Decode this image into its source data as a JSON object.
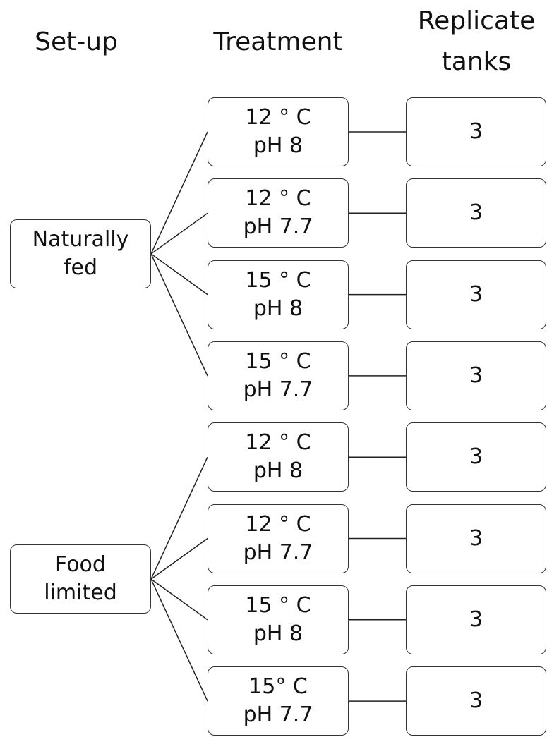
{
  "headers": {
    "setup": "Set-up",
    "treatment": "Treatment",
    "replicates": "Replicate tanks"
  },
  "setups": [
    {
      "label": "Naturally fed",
      "treatments": [
        {
          "temperature": "12 ° C",
          "ph": "pH 8",
          "replicate_tanks": 3
        },
        {
          "temperature": "12 ° C",
          "ph": "pH 7.7",
          "replicate_tanks": 3
        },
        {
          "temperature": "15 ° C",
          "ph": "pH 8",
          "replicate_tanks": 3
        },
        {
          "temperature": "15 ° C",
          "ph": "pH 7.7",
          "replicate_tanks": 3
        }
      ]
    },
    {
      "label": "Food limited",
      "treatments": [
        {
          "temperature": "12 ° C",
          "ph": "pH 8",
          "replicate_tanks": 3
        },
        {
          "temperature": "12 ° C",
          "ph": "pH 7.7",
          "replicate_tanks": 3
        },
        {
          "temperature": "15 ° C",
          "ph": "pH 8",
          "replicate_tanks": 3
        },
        {
          "temperature": "15° C",
          "ph": "pH 7.7",
          "replicate_tanks": 3
        }
      ]
    }
  ]
}
